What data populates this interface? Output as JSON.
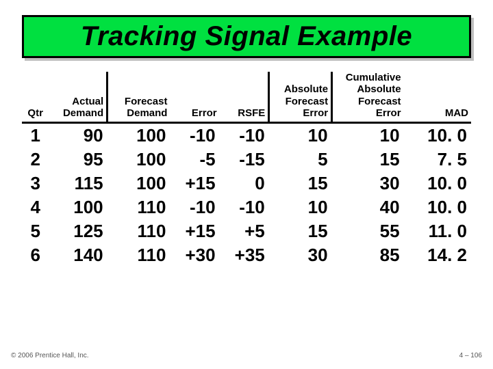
{
  "title": "Tracking Signal Example",
  "columns": [
    {
      "key": "qtr",
      "label": "Qtr",
      "align": "c",
      "vr": false
    },
    {
      "key": "actual",
      "label": "Actual Demand",
      "align": "r",
      "vr": true
    },
    {
      "key": "forecast",
      "label": "Forecast Demand",
      "align": "r",
      "vr": false
    },
    {
      "key": "error",
      "label": "Error",
      "align": "r",
      "vr": false
    },
    {
      "key": "rsfe",
      "label": "RSFE",
      "align": "r",
      "vr": true
    },
    {
      "key": "afe",
      "label": "Absolute Forecast Error",
      "align": "r",
      "vr": true
    },
    {
      "key": "cafe",
      "label": "Cumulative Absolute Forecast Error",
      "align": "r",
      "vr": false
    },
    {
      "key": "mad",
      "label": "MAD",
      "align": "r",
      "vr": false
    }
  ],
  "rows": [
    {
      "qtr": "1",
      "actual": "90",
      "forecast": "100",
      "error": "-10",
      "rsfe": "-10",
      "afe": "10",
      "cafe": "10",
      "mad": "10. 0"
    },
    {
      "qtr": "2",
      "actual": "95",
      "forecast": "100",
      "error": "-5",
      "rsfe": "-15",
      "afe": "5",
      "cafe": "15",
      "mad": "7. 5"
    },
    {
      "qtr": "3",
      "actual": "115",
      "forecast": "100",
      "error": "+15",
      "rsfe": "0",
      "afe": "15",
      "cafe": "30",
      "mad": "10. 0"
    },
    {
      "qtr": "4",
      "actual": "100",
      "forecast": "110",
      "error": "-10",
      "rsfe": "-10",
      "afe": "10",
      "cafe": "40",
      "mad": "10. 0"
    },
    {
      "qtr": "5",
      "actual": "125",
      "forecast": "110",
      "error": "+15",
      "rsfe": "+5",
      "afe": "15",
      "cafe": "55",
      "mad": "11. 0"
    },
    {
      "qtr": "6",
      "actual": "140",
      "forecast": "110",
      "error": "+30",
      "rsfe": "+35",
      "afe": "30",
      "cafe": "85",
      "mad": "14. 2"
    }
  ],
  "footer_left": "© 2006 Prentice Hall, Inc.",
  "footer_right": "4 – 106",
  "colors": {
    "title_bg": "#00e040",
    "border": "#000000",
    "text": "#000000",
    "footer": "#555555"
  }
}
